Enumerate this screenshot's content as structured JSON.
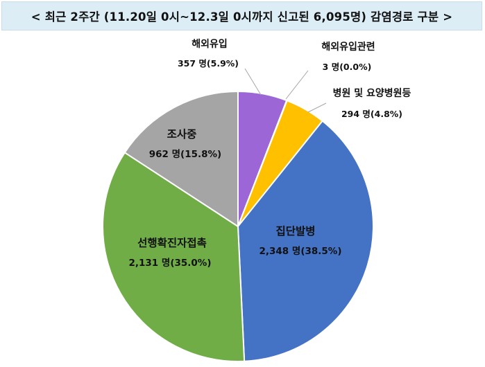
{
  "chart_data": {
    "type": "pie",
    "title": "< 최근 2주간 (11.20일 0시~12.3일 0시까지 신고된 6,095명) 감염경로 구분 >",
    "start_angle_deg": 0,
    "direction": "clockwise",
    "slices": [
      {
        "label": "해외유입",
        "value": 357,
        "value_text": "357 명(5.9%)",
        "color": "#9d66d6"
      },
      {
        "label": "해외유입관련",
        "value": 3,
        "value_text": "3 명(0.0%)",
        "color": "#5b9bd5"
      },
      {
        "label": "병원 및 요양병원등",
        "value": 294,
        "value_text": "294 명(4.8%)",
        "color": "#ffc000"
      },
      {
        "label": "집단발병",
        "value": 2348,
        "value_text": "2,348 명(38.5%)",
        "color": "#4472c4"
      },
      {
        "label": "선행확진자접촉",
        "value": 2131,
        "value_text": "2,131 명(35.0%)",
        "color": "#70ad47"
      },
      {
        "label": "조사중",
        "value": 962,
        "value_text": "962 명(15.8%)",
        "color": "#a5a5a5"
      }
    ]
  }
}
